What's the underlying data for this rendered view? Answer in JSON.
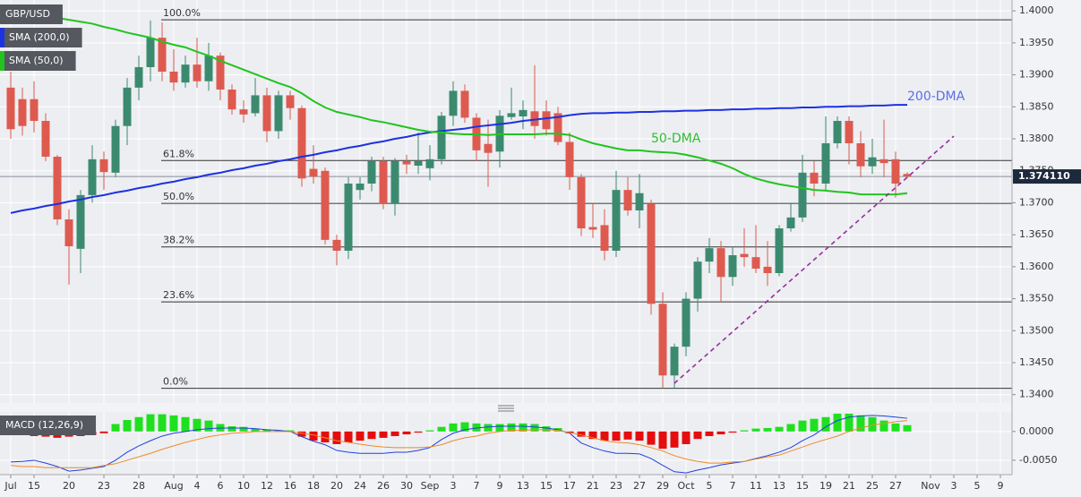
{
  "chart_data": [
    {
      "type": "candlestick",
      "title": "GBP/USD",
      "categories": [
        "Jul",
        null,
        "15",
        null,
        null,
        "20",
        null,
        null,
        "23",
        null,
        null,
        "28",
        null,
        null,
        "Aug",
        null,
        "4",
        null,
        "6",
        null,
        "10",
        null,
        "12",
        null,
        "16",
        null,
        "18",
        null,
        "20",
        null,
        "24",
        null,
        "26",
        null,
        "30",
        null,
        "Sep",
        null,
        "3",
        null,
        "7",
        null,
        "9",
        null,
        "13",
        null,
        "15",
        null,
        "17",
        null,
        "21",
        null,
        "23",
        null,
        "27",
        null,
        "29",
        null,
        "Oct",
        null,
        "5",
        null,
        "7",
        null,
        "11",
        null,
        "13",
        null,
        "15",
        null,
        "19",
        null,
        "21",
        null,
        "25",
        null,
        "27",
        null,
        null,
        "Nov",
        null,
        "3",
        null,
        "5",
        null,
        "9"
      ],
      "open": [
        1.388,
        1.3862,
        1.3862,
        1.3828,
        1.3772,
        1.3674,
        1.3628,
        1.3712,
        1.3768,
        1.3747,
        1.382,
        1.388,
        1.3912,
        1.3958,
        1.3905,
        1.3888,
        1.3916,
        1.389,
        1.393,
        1.3877,
        1.3846,
        1.384,
        1.3868,
        1.3812,
        1.3868,
        1.3848,
        1.3753,
        1.375,
        1.3642,
        1.3625,
        1.372,
        1.373,
        1.3765,
        1.3698,
        1.3765,
        1.3758,
        1.3754,
        1.3768,
        1.3836,
        1.3875,
        1.3833,
        1.3792,
        1.378,
        1.3834,
        1.3835,
        1.3843,
        1.3843,
        1.384,
        1.3795,
        1.374,
        1.3662,
        1.3665,
        1.3625,
        1.372,
        1.3688,
        1.3698,
        1.3542,
        1.343,
        1.3475,
        1.355,
        1.3608,
        1.3629,
        1.3584,
        1.362,
        1.3615,
        1.36,
        1.359,
        1.366,
        1.3677,
        1.3747,
        1.373,
        1.3793,
        1.3828,
        1.3793,
        1.3757,
        1.3768,
        1.3768,
        1.3745,
        null,
        null,
        null,
        null,
        null,
        null,
        null,
        null
      ],
      "high": [
        1.3905,
        1.388,
        1.389,
        1.384,
        1.3775,
        1.369,
        1.372,
        1.379,
        1.378,
        1.383,
        1.3895,
        1.393,
        1.3985,
        1.3982,
        1.394,
        1.393,
        1.3958,
        1.395,
        1.3935,
        1.3885,
        1.386,
        1.3895,
        1.388,
        1.3875,
        1.3875,
        1.3852,
        1.379,
        1.3755,
        1.365,
        1.374,
        1.374,
        1.3772,
        1.3772,
        1.377,
        1.3775,
        1.381,
        1.379,
        1.3842,
        1.389,
        1.3885,
        1.384,
        1.383,
        1.3845,
        1.388,
        1.386,
        1.3915,
        1.386,
        1.385,
        1.381,
        1.3745,
        1.37,
        1.369,
        1.375,
        1.374,
        1.3745,
        1.3705,
        1.356,
        1.348,
        1.356,
        1.3615,
        1.3645,
        1.364,
        1.363,
        1.366,
        1.3665,
        1.364,
        1.3665,
        1.37,
        1.3775,
        1.3765,
        1.3835,
        1.3835,
        1.3835,
        1.3812,
        1.38,
        1.383,
        1.378,
        1.3748,
        null,
        null,
        null,
        null,
        null,
        null,
        null,
        null
      ],
      "low": [
        1.38,
        1.3805,
        1.381,
        1.3765,
        1.3665,
        1.3572,
        1.359,
        1.37,
        1.372,
        1.374,
        1.379,
        1.386,
        1.389,
        1.389,
        1.3875,
        1.388,
        1.388,
        1.3875,
        1.386,
        1.3838,
        1.3825,
        1.3835,
        1.3795,
        1.38,
        1.383,
        1.3725,
        1.373,
        1.3635,
        1.3602,
        1.3612,
        1.3705,
        1.3718,
        1.369,
        1.368,
        1.3745,
        1.3745,
        1.3735,
        1.376,
        1.382,
        1.3825,
        1.3765,
        1.3725,
        1.3755,
        1.383,
        1.3815,
        1.38,
        1.3805,
        1.379,
        1.372,
        1.3648,
        1.3645,
        1.361,
        1.3615,
        1.368,
        1.366,
        1.3525,
        1.341,
        1.341,
        1.346,
        1.353,
        1.359,
        1.3545,
        1.357,
        1.36,
        1.359,
        1.357,
        1.3585,
        1.3655,
        1.367,
        1.371,
        1.372,
        1.3785,
        1.376,
        1.374,
        1.3745,
        1.374,
        1.3708,
        1.3738,
        null,
        null,
        null,
        null,
        null,
        null,
        null,
        null
      ],
      "close": [
        1.3815,
        1.382,
        1.3828,
        1.3772,
        1.3674,
        1.3632,
        1.3712,
        1.3768,
        1.3748,
        1.382,
        1.388,
        1.3912,
        1.3958,
        1.3905,
        1.3888,
        1.3916,
        1.389,
        1.393,
        1.3877,
        1.3846,
        1.3838,
        1.3868,
        1.3812,
        1.3868,
        1.3848,
        1.3738,
        1.3741,
        1.3642,
        1.3625,
        1.373,
        1.373,
        1.3765,
        1.3698,
        1.3765,
        1.376,
        1.3765,
        1.3768,
        1.3836,
        1.3875,
        1.3833,
        1.3782,
        1.3778,
        1.3836,
        1.384,
        1.3845,
        1.382,
        1.3815,
        1.3795,
        1.374,
        1.366,
        1.3658,
        1.3625,
        1.372,
        1.3688,
        1.3715,
        1.3542,
        1.343,
        1.3475,
        1.355,
        1.3608,
        1.3629,
        1.3584,
        1.3618,
        1.3615,
        1.3597,
        1.359,
        1.366,
        1.3677,
        1.3747,
        1.373,
        1.3793,
        1.3828,
        1.3793,
        1.3757,
        1.3771,
        1.3762,
        1.373,
        1.3741,
        null,
        null,
        null,
        null,
        null,
        null,
        null,
        null
      ],
      "up_color": "#3b8a6f",
      "down_color": "#de5a4f",
      "series": [
        {
          "name": "SMA (200,0)",
          "color": "#1d32e0",
          "values": [
            1.3684,
            1.3688,
            1.3691,
            1.3695,
            1.3698,
            1.3702,
            1.3705,
            1.3709,
            1.3712,
            1.3716,
            1.3719,
            1.3723,
            1.3726,
            1.373,
            1.3733,
            1.3737,
            1.374,
            1.3744,
            1.3747,
            1.3751,
            1.3754,
            1.3758,
            1.3761,
            1.3765,
            1.3768,
            1.3772,
            1.3775,
            1.3779,
            1.3782,
            1.3786,
            1.3789,
            1.3793,
            1.3796,
            1.38,
            1.3803,
            1.3807,
            1.381,
            1.3812,
            1.3814,
            1.3816,
            1.3819,
            1.3821,
            1.3823,
            1.3825,
            1.3828,
            1.383,
            1.3832,
            1.3834,
            1.3837,
            1.3839,
            1.384,
            1.384,
            1.3841,
            1.3841,
            1.3842,
            1.3842,
            1.3843,
            1.3843,
            1.3844,
            1.3844,
            1.3845,
            1.3845,
            1.3846,
            1.3846,
            1.3847,
            1.3847,
            1.3848,
            1.3848,
            1.3849,
            1.3849,
            1.385,
            1.385,
            1.3851,
            1.3851,
            1.3852,
            1.3852,
            1.3853,
            1.3853,
            null,
            null,
            null,
            null,
            null,
            null,
            null,
            null
          ]
        },
        {
          "name": "SMA (50,0)",
          "color": "#22c41e",
          "values": [
            1.4007,
            1.4003,
            1.3999,
            1.3993,
            1.3989,
            1.3986,
            1.3983,
            1.398,
            1.3975,
            1.3971,
            1.3966,
            1.3962,
            1.3958,
            1.3952,
            1.3947,
            1.3943,
            1.3936,
            1.393,
            1.3922,
            1.3915,
            1.3908,
            1.3901,
            1.3894,
            1.3887,
            1.3881,
            1.3871,
            1.3859,
            1.3849,
            1.3842,
            1.3838,
            1.3834,
            1.3829,
            1.3826,
            1.3822,
            1.3818,
            1.3814,
            1.3811,
            1.381,
            1.3808,
            1.3807,
            1.3807,
            1.3806,
            1.3807,
            1.3807,
            1.3807,
            1.3807,
            1.3808,
            1.3808,
            1.3806,
            1.3799,
            1.3793,
            1.3789,
            1.3785,
            1.3782,
            1.3782,
            1.378,
            1.3779,
            1.3778,
            1.3775,
            1.3771,
            1.3766,
            1.3761,
            1.3754,
            1.3745,
            1.3738,
            1.3733,
            1.3729,
            1.3726,
            1.3723,
            1.372,
            1.3719,
            1.3717,
            1.3716,
            1.3713,
            1.3713,
            1.3713,
            1.3713,
            1.3715,
            null,
            null,
            null,
            null,
            null,
            null,
            null,
            null
          ]
        }
      ],
      "annotations": [
        {
          "text": "200-DMA",
          "color": "#5a6ee6"
        },
        {
          "text": "50-DMA",
          "color": "#2fbf2f"
        }
      ],
      "fib_levels": [
        {
          "label": "100.0%",
          "price": 1.3986
        },
        {
          "label": "61.8%",
          "price": 1.3766
        },
        {
          "label": "50.0%",
          "price": 1.3699
        },
        {
          "label": "38.2%",
          "price": 1.3631
        },
        {
          "label": "23.6%",
          "price": 1.3545
        },
        {
          "label": "0.0%",
          "price": 1.341
        }
      ],
      "last_price": {
        "value": 1.37411,
        "label": "1.374110"
      },
      "ylim": [
        1.3387,
        1.4017
      ],
      "yticks": [
        {
          "value": 1.34,
          "label": "1.3400"
        },
        {
          "value": 1.345,
          "label": "1.3450"
        },
        {
          "value": 1.35,
          "label": "1.3500"
        },
        {
          "value": 1.355,
          "label": "1.3550"
        },
        {
          "value": 1.36,
          "label": "1.3600"
        },
        {
          "value": 1.365,
          "label": "1.3650"
        },
        {
          "value": 1.37,
          "label": "1.3700"
        },
        {
          "value": 1.375,
          "label": "1.3750"
        },
        {
          "value": 1.38,
          "label": "1.3800"
        },
        {
          "value": 1.385,
          "label": "1.3850"
        },
        {
          "value": 1.39,
          "label": "1.3900"
        },
        {
          "value": 1.395,
          "label": "1.3950"
        },
        {
          "value": 1.4,
          "label": "1.4000"
        }
      ],
      "grid": true
    },
    {
      "type": "macd",
      "title": "MACD (12,26,9)",
      "histogram": [
        0.0002,
        -0.0005,
        -0.0008,
        -0.0009,
        -0.0011,
        -0.0009,
        -0.0008,
        -0.0006,
        -0.0003,
        0.0013,
        0.002,
        0.0025,
        0.003,
        0.003,
        0.0028,
        0.0025,
        0.0022,
        0.0019,
        0.0013,
        0.0009,
        0.0008,
        0.0005,
        0.0003,
        0.0002,
        0.0002,
        -0.0009,
        -0.0016,
        -0.0019,
        -0.0022,
        -0.0019,
        -0.0016,
        -0.0013,
        -0.0011,
        -0.0008,
        -0.0005,
        -0.0002,
        0.0002,
        0.0008,
        0.0014,
        0.0016,
        0.0014,
        0.0013,
        0.0013,
        0.0014,
        0.0014,
        0.0013,
        0.0009,
        0.0006,
        -0.0003,
        -0.0009,
        -0.0013,
        -0.0016,
        -0.0016,
        -0.0014,
        -0.0016,
        -0.0023,
        -0.003,
        -0.0028,
        -0.0022,
        -0.0013,
        -0.0008,
        -0.0005,
        -0.0002,
        0.0002,
        0.0005,
        0.0006,
        0.0008,
        0.0013,
        0.0019,
        0.0022,
        0.0025,
        0.0031,
        0.0031,
        0.0028,
        0.0025,
        0.0019,
        0.0014,
        0.0011,
        null,
        null,
        null,
        null,
        null,
        null,
        null,
        null
      ],
      "macd": [
        -0.0053,
        -0.0052,
        -0.005,
        -0.0055,
        -0.0061,
        -0.0069,
        -0.0067,
        -0.0064,
        -0.0061,
        -0.005,
        -0.0036,
        -0.0025,
        -0.0016,
        -0.0008,
        -0.0003,
        0,
        0.0003,
        0.0005,
        0.0006,
        0.0006,
        0.0006,
        0.0005,
        0.0003,
        0.0002,
        0,
        -0.0009,
        -0.0017,
        -0.0023,
        -0.0033,
        -0.0036,
        -0.0038,
        -0.0038,
        -0.0038,
        -0.0036,
        -0.0036,
        -0.0033,
        -0.0028,
        -0.0014,
        -0.0003,
        0.0003,
        0.0006,
        0.0008,
        0.0009,
        0.0009,
        0.0009,
        0.0008,
        0.0006,
        0.0003,
        -0.0003,
        -0.002,
        -0.0028,
        -0.0034,
        -0.0038,
        -0.0038,
        -0.0039,
        -0.0047,
        -0.0059,
        -0.007,
        -0.0072,
        -0.0067,
        -0.0063,
        -0.0058,
        -0.0055,
        -0.0052,
        -0.0047,
        -0.0042,
        -0.0036,
        -0.0028,
        -0.0016,
        -0.0006,
        0.0008,
        0.0019,
        0.0025,
        0.0027,
        0.0028,
        0.0027,
        0.0025,
        0.0023,
        null,
        null,
        null,
        null,
        null,
        null,
        null,
        null
      ],
      "signal": [
        -0.0059,
        -0.0061,
        -0.0061,
        -0.0063,
        -0.0063,
        -0.0063,
        -0.0063,
        -0.0063,
        -0.0059,
        -0.0056,
        -0.005,
        -0.0044,
        -0.0038,
        -0.0031,
        -0.0025,
        -0.0019,
        -0.0014,
        -0.0009,
        -0.0006,
        -0.0003,
        -0.0002,
        0,
        0,
        0,
        0,
        -0.0003,
        -0.0006,
        -0.0011,
        -0.0016,
        -0.0019,
        -0.0022,
        -0.0025,
        -0.0027,
        -0.0028,
        -0.0028,
        -0.0028,
        -0.0027,
        -0.0023,
        -0.0016,
        -0.0011,
        -0.0008,
        -0.0003,
        0,
        0.0002,
        0.0002,
        0.0003,
        0.0003,
        0.0002,
        -0.0002,
        -0.0006,
        -0.0011,
        -0.0016,
        -0.0019,
        -0.002,
        -0.0023,
        -0.0028,
        -0.0034,
        -0.0042,
        -0.0048,
        -0.0052,
        -0.0055,
        -0.0055,
        -0.0053,
        -0.0052,
        -0.0048,
        -0.0044,
        -0.0041,
        -0.0034,
        -0.0027,
        -0.002,
        -0.0014,
        -0.0008,
        0,
        0.0006,
        0.0011,
        0.0014,
        0.0017,
        0.0019,
        null,
        null,
        null,
        null,
        null,
        null,
        null,
        null
      ],
      "up_color": "#1fe01f",
      "down_color": "#e50d0d",
      "macd_color": "#2040e0",
      "signal_color": "#f08a24",
      "ylim": [
        -0.0075,
        0.0034
      ],
      "yticks": [
        {
          "value": 0,
          "label": "0.0000"
        },
        {
          "value": -0.005,
          "label": "-0.0050"
        }
      ],
      "grid": true
    }
  ]
}
